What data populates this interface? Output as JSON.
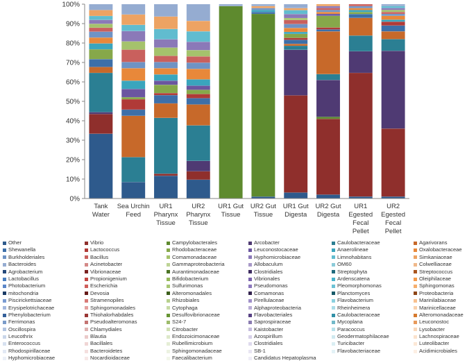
{
  "chart_data": {
    "type": "bar",
    "stacked": true,
    "percent": true,
    "title": "",
    "xlabel": "",
    "ylabel": "",
    "ylim": [
      0,
      100
    ],
    "y_tick_labels": [
      "0%",
      "10%",
      "20%",
      "30%",
      "40%",
      "50%",
      "60%",
      "70%",
      "80%",
      "90%",
      "100%"
    ],
    "grid": false,
    "legend_placement": "bottom",
    "categories": [
      "Tank Water",
      "Sea Urchin Feed",
      "UR1 Pharynx Tissue",
      "UR2 Pharynx Tissue",
      "UR1 Gut Tissue",
      "UR2 Gut Tissue",
      "UR1 Gut Digesta",
      "UR2 Gut Digesta",
      "UR1 Egested Fecal Pellet",
      "UR2 Egested Fecal Pellet"
    ],
    "category_lines": [
      [
        "Tank",
        "Water"
      ],
      [
        "Sea Urchin",
        "Feed"
      ],
      [
        "UR1",
        "Pharynx",
        "Tissue"
      ],
      [
        "UR2",
        "Pharynx",
        "Tissue"
      ],
      [
        "UR1 Gut",
        "Tissue"
      ],
      [
        "UR2 Gut",
        "Tissue"
      ],
      [
        "UR1 Gut",
        "Digesta"
      ],
      [
        "UR2 Gut",
        "Digesta"
      ],
      [
        "UR1",
        "Egested",
        "Fecal",
        "Pellet"
      ],
      [
        "UR2",
        "Egested",
        "Fecal",
        "Pellet"
      ]
    ],
    "legend": [
      {
        "name": "Other",
        "color": "#2e5a8c"
      },
      {
        "name": "Vibrio",
        "color": "#8f2f2c"
      },
      {
        "name": "Campylobacterales",
        "color": "#5e8a2e"
      },
      {
        "name": "Arcobacter",
        "color": "#4f3a73"
      },
      {
        "name": "Caulobacteraceae",
        "color": "#2b7f93"
      },
      {
        "name": "Agarivorans",
        "color": "#c7692a"
      },
      {
        "name": "Shewanella",
        "color": "#3d6fa8"
      },
      {
        "name": "Lactococcus",
        "color": "#b03a37"
      },
      {
        "name": "Rhodobacteraceae",
        "color": "#86a84a"
      },
      {
        "name": "Leuconostocaceae",
        "color": "#6b56a0"
      },
      {
        "name": "Anaerolineae",
        "color": "#3aa5bd"
      },
      {
        "name": "Oxalobacteraceae",
        "color": "#e8883a"
      },
      {
        "name": "Burkholderiales",
        "color": "#6f93c4"
      },
      {
        "name": "Bacillus",
        "color": "#c9605d"
      },
      {
        "name": "Comamonadaceae",
        "color": "#a5c26c"
      },
      {
        "name": "Hyphomicrobiaceae",
        "color": "#8b79b8"
      },
      {
        "name": "Limnohabitans",
        "color": "#61bccf"
      },
      {
        "name": "Simkaniaceae",
        "color": "#eda363"
      },
      {
        "name": "Bacteroides",
        "color": "#95acd1"
      },
      {
        "name": "Acinetobacter",
        "color": "#d48987"
      },
      {
        "name": "Gammaproteobacteria",
        "color": "#bdd395"
      },
      {
        "name": "Allobaculum",
        "color": "#a798c8"
      },
      {
        "name": "OM60",
        "color": "#8ccbd9"
      },
      {
        "name": "Colwelliaceae",
        "color": "#f0b98a"
      },
      {
        "name": "Agrobacterium",
        "color": "#24487a"
      },
      {
        "name": "Vibrionaceae",
        "color": "#7a2220"
      },
      {
        "name": "Aurantimonadaceae",
        "color": "#4b7324"
      },
      {
        "name": "Clostridiales",
        "color": "#3e2c60"
      },
      {
        "name": "Streptophyta",
        "color": "#1f6a7d"
      },
      {
        "name": "Streptococcus",
        "color": "#a9561f"
      },
      {
        "name": "Lactobacillus",
        "color": "#4a7fbf"
      },
      {
        "name": "Propionigenium",
        "color": "#c34542"
      },
      {
        "name": "Bifidobacterium",
        "color": "#97b95a"
      },
      {
        "name": "Vibrionales",
        "color": "#7a63ad"
      },
      {
        "name": "Ardenscatena",
        "color": "#48b3cb"
      },
      {
        "name": "Oleiphilaceae",
        "color": "#f59a4a"
      },
      {
        "name": "Photobacterium",
        "color": "#5b86c8"
      },
      {
        "name": "Escherichia",
        "color": "#cf5e5a"
      },
      {
        "name": "Sulfurimonas",
        "color": "#a8c774"
      },
      {
        "name": "Pseudomonas",
        "color": "#8c78bd"
      },
      {
        "name": "Pleomorphomonas",
        "color": "#6cc2d5"
      },
      {
        "name": "Sphingomonas",
        "color": "#f6ae6d"
      },
      {
        "name": "mitochondria",
        "color": "#1a3b66"
      },
      {
        "name": "Devosia",
        "color": "#661a18"
      },
      {
        "name": "Alteromonadales",
        "color": "#3c5f1c"
      },
      {
        "name": "Comamonas",
        "color": "#33234f"
      },
      {
        "name": "Planctomyces",
        "color": "#185a69"
      },
      {
        "name": "Proteobacteria",
        "color": "#8e4617"
      },
      {
        "name": "Piscirickettsiaceae",
        "color": "#7a9bd2"
      },
      {
        "name": "Stramenopiles",
        "color": "#d97a77"
      },
      {
        "name": "Rhizobiales",
        "color": "#b7d08c"
      },
      {
        "name": "Pirellulaceae",
        "color": "#a090c9"
      },
      {
        "name": "Flavobacterium",
        "color": "#8ad0df"
      },
      {
        "name": "Marinilabiaceae",
        "color": "#f8c08e"
      },
      {
        "name": "Erysipelotrichaceae",
        "color": "#a3b8de"
      },
      {
        "name": "Sphingomonadales",
        "color": "#e4a19f"
      },
      {
        "name": "Cytophaga",
        "color": "#c7dba6"
      },
      {
        "name": "Alphaproteobacteria",
        "color": "#b9add6"
      },
      {
        "name": "Rheinheimera",
        "color": "#a9dce7"
      },
      {
        "name": "Marinicellaceae",
        "color": "#f9d1ac"
      },
      {
        "name": "Phenylobacterium",
        "color": "#34609a"
      },
      {
        "name": "Thiohalorhabdales",
        "color": "#9a3634"
      },
      {
        "name": "Desulfovibrionaceae",
        "color": "#679533"
      },
      {
        "name": "Flavobacteriales",
        "color": "#574184"
      },
      {
        "name": "Caulobacteraceae",
        "color": "#3190a7"
      },
      {
        "name": "Alteromonadaceae",
        "color": "#d67a2e"
      },
      {
        "name": "Ferrimonas",
        "color": "#7b9cc9"
      },
      {
        "name": "Pseudoalteromonas",
        "color": "#c47472"
      },
      {
        "name": "S24-7",
        "color": "#9dbb6b"
      },
      {
        "name": "Saprospiraceae",
        "color": "#8a7bb0"
      },
      {
        "name": "Mycoplana",
        "color": "#72b9c9"
      },
      {
        "name": "Leuconostoc",
        "color": "#e79a5c"
      },
      {
        "name": "Oscillospira",
        "color": "#b2c4e0"
      },
      {
        "name": "Chlamydiales",
        "color": "#dfb2b1"
      },
      {
        "name": "Citrobacter",
        "color": "#cfe0b3"
      },
      {
        "name": "Kaistobacter",
        "color": "#c4bbde"
      },
      {
        "name": "Paracoccus",
        "color": "#b7e1ea"
      },
      {
        "name": "Lysobacter",
        "color": "#f9d7b9"
      },
      {
        "name": "Leucothrix",
        "color": "#c9d6ea"
      },
      {
        "name": "Blautia",
        "color": "#ebcac9"
      },
      {
        "name": "Endozoicimonaceae",
        "color": "#dde9c9"
      },
      {
        "name": "Azospirillum",
        "color": "#d6d0e8"
      },
      {
        "name": "Geodermatophilaceae",
        "color": "#cfe9ef"
      },
      {
        "name": "Lachnospiraceae",
        "color": "#fbe2cc"
      },
      {
        "name": "Enterococcus",
        "color": "#d7e1f0"
      },
      {
        "name": "Bacillales",
        "color": "#f0d6d5"
      },
      {
        "name": "Rubellimicrobium",
        "color": "#e5eed6"
      },
      {
        "name": "Clostridiales",
        "color": "#dfdbee"
      },
      {
        "name": "Turicibacter",
        "color": "#daeef3"
      },
      {
        "name": "Luteolibacter",
        "color": "#fce8d6"
      },
      {
        "name": "Rhodospirillaceae",
        "color": "#e2e9f4"
      },
      {
        "name": "Bacteroidetes",
        "color": "#f4dfde"
      },
      {
        "name": "Sphingomonadaceae",
        "color": "#ecf2e1"
      },
      {
        "name": "SB-1",
        "color": "#e8e5f3"
      },
      {
        "name": "Flavobacteriaceae",
        "color": "#e3f2f6"
      },
      {
        "name": "Acidimicrobiales",
        "color": "#fdefe3"
      },
      {
        "name": "Hyphomicrobiaceae",
        "color": "#ebf0f7"
      },
      {
        "name": "Nocardioidaceae",
        "color": "#f7e8e7"
      },
      {
        "name": "Faecalibacterium",
        "color": "#f2f6ea"
      },
      {
        "name": "Candidatus Hepatoplasma",
        "color": "#efedf7"
      }
    ],
    "series": [
      {
        "name": "Other",
        "values": [
          33,
          8,
          11,
          9,
          0,
          1,
          3,
          2,
          1,
          1
        ]
      },
      {
        "name": "Vibrio",
        "values": [
          10,
          0,
          1,
          4,
          0,
          0,
          49,
          39,
          63,
          35
        ]
      },
      {
        "name": "Campylobacterales",
        "values": [
          0,
          0,
          0,
          0,
          99,
          94,
          0,
          1,
          0,
          0
        ]
      },
      {
        "name": "Arcobacter",
        "values": [
          1,
          0,
          0,
          5,
          0,
          0,
          23,
          19,
          11,
          40
        ]
      },
      {
        "name": "Caulobacteraceae",
        "values": [
          20,
          12,
          27,
          17,
          0,
          0,
          2,
          3,
          8,
          6
        ]
      },
      {
        "name": "Agarivorans",
        "values": [
          3,
          20,
          7,
          10,
          0,
          0,
          1,
          22,
          9,
          4
        ]
      },
      {
        "name": "Shewanella",
        "values": [
          4,
          3,
          4,
          3,
          0,
          1,
          2,
          1,
          2,
          3
        ]
      },
      {
        "name": "Lactococcus",
        "values": [
          0,
          5,
          1,
          2,
          0,
          0,
          1,
          1,
          0,
          2
        ]
      },
      {
        "name": "Rhodobacteraceae",
        "values": [
          5,
          1,
          4,
          2,
          0,
          0,
          2,
          6,
          1,
          0
        ]
      },
      {
        "name": "Leuconostocaceae",
        "values": [
          0,
          4,
          2,
          2,
          0,
          0,
          0,
          1,
          0,
          0
        ]
      },
      {
        "name": "Anaerolineae",
        "values": [
          3,
          4,
          3,
          3,
          0,
          1,
          1,
          0,
          1,
          1
        ]
      },
      {
        "name": "Oxalobacteraceae",
        "values": [
          3,
          6,
          3,
          5,
          0,
          0,
          2,
          1,
          1,
          2
        ]
      },
      {
        "name": "Burkholderiales",
        "values": [
          3,
          3,
          3,
          3,
          0,
          1,
          2,
          1,
          1,
          1
        ]
      },
      {
        "name": "Bacillus",
        "values": [
          2,
          6,
          3,
          3,
          0,
          0,
          2,
          1,
          1,
          1
        ]
      },
      {
        "name": "Comamonadaceae",
        "values": [
          2,
          4,
          4,
          3,
          0,
          0,
          1,
          0,
          0,
          1
        ]
      },
      {
        "name": "Hyphomicrobiaceae",
        "values": [
          2,
          5,
          4,
          4,
          0,
          0,
          2,
          1,
          0,
          1
        ]
      },
      {
        "name": "Limnohabitans",
        "values": [
          2,
          3,
          5,
          5,
          0,
          0,
          2,
          0,
          0,
          1
        ]
      },
      {
        "name": "Simkaniaceae",
        "values": [
          3,
          5,
          6,
          5,
          0,
          1,
          1,
          1,
          0,
          0
        ]
      },
      {
        "name": "Bacteroides",
        "values": [
          3,
          5,
          6,
          8,
          1,
          1,
          2,
          0,
          0,
          1
        ]
      }
    ]
  }
}
